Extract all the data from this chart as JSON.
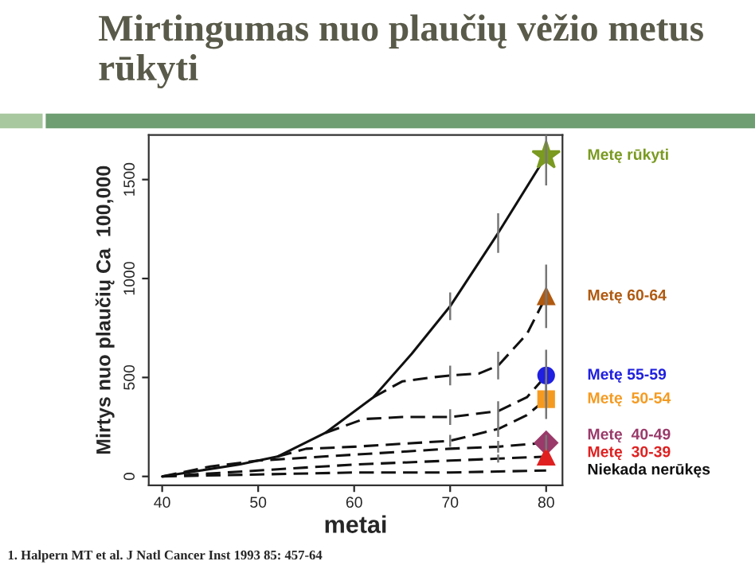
{
  "chart_data": {
    "type": "line",
    "title": "Mirtingumas nuo plaučių vėžio metus rūkyti",
    "xlabel": "metai",
    "ylabel": "Mirtys nuo plaučių Ca  100,000",
    "xlim": [
      38.6,
      81.7
    ],
    "ylim": [
      -45,
      1725
    ],
    "xticks": [
      40,
      50,
      60,
      70,
      80
    ],
    "yticks": [
      0,
      500,
      1000,
      1500
    ],
    "grid": false,
    "legend": false,
    "annotations": [
      "1. Halpern MT et al. J Natl Cancer Inst 1993 85: 457-64"
    ],
    "series": [
      {
        "color": "#111111",
        "marker": "none",
        "line_style": "solid",
        "x": [
          40,
          44,
          48,
          52,
          57,
          62,
          66,
          70,
          75,
          80
        ],
        "values": [
          0,
          30,
          60,
          100,
          220,
          400,
          620,
          860,
          1230,
          1620
        ],
        "errors": [
          null,
          null,
          null,
          null,
          null,
          null,
          null,
          70,
          100,
          150
        ]
      },
      {
        "color": "#111111",
        "marker": "none",
        "line_style": "dashed",
        "x": [
          62,
          65,
          68,
          70,
          73,
          75,
          78,
          80
        ],
        "values": [
          400,
          480,
          500,
          510,
          520,
          560,
          720,
          910
        ],
        "errors": [
          null,
          null,
          null,
          50,
          null,
          70,
          null,
          160
        ]
      },
      {
        "color": "#111111",
        "marker": "none",
        "line_style": "dashed",
        "x": [
          57,
          61,
          65,
          70,
          75,
          78,
          80
        ],
        "values": [
          220,
          290,
          300,
          300,
          330,
          400,
          510
        ],
        "errors": [
          null,
          null,
          null,
          40,
          50,
          null,
          130
        ]
      },
      {
        "color": "#111111",
        "marker": "none",
        "line_style": "dashed",
        "x": [
          52,
          55,
          60,
          70,
          75,
          78,
          80
        ],
        "values": [
          100,
          140,
          150,
          180,
          240,
          310,
          390
        ],
        "errors": [
          null,
          null,
          null,
          30,
          40,
          null,
          100
        ]
      },
      {
        "color": "#111111",
        "marker": "none",
        "line_style": "dashed",
        "x": [
          40,
          45,
          50,
          60,
          70,
          75,
          80
        ],
        "values": [
          0,
          50,
          80,
          110,
          140,
          150,
          170
        ],
        "errors": [
          null,
          null,
          null,
          null,
          null,
          30,
          40
        ]
      },
      {
        "color": "#111111",
        "marker": "none",
        "line_style": "dashed",
        "x": [
          40,
          50,
          60,
          70,
          75,
          80
        ],
        "values": [
          0,
          30,
          60,
          80,
          90,
          100
        ],
        "errors": [
          null,
          null,
          null,
          null,
          20,
          null
        ]
      },
      {
        "name": "Niekada nerūkęs",
        "color": "#111111",
        "marker": "none",
        "line_style": "dashed",
        "x": [
          40,
          50,
          60,
          70,
          80
        ],
        "values": [
          0,
          10,
          20,
          20,
          30
        ]
      },
      {
        "type": "scatter",
        "name": "Metę rūkyti",
        "color": "#7a9a20",
        "marker": "star",
        "x": [
          80
        ],
        "values": [
          1620
        ]
      },
      {
        "type": "scatter",
        "name": "Metę 60-64",
        "color": "#b05a10",
        "marker": "triangle",
        "x": [
          80
        ],
        "values": [
          910
        ]
      },
      {
        "type": "scatter",
        "name": "Metę 55-59",
        "color": "#2020e0",
        "marker": "circle",
        "x": [
          80
        ],
        "values": [
          510
        ]
      },
      {
        "type": "scatter",
        "name": "Metę  50-54",
        "color": "#f59a20",
        "marker": "square",
        "x": [
          80
        ],
        "values": [
          390
        ]
      },
      {
        "type": "scatter",
        "name": "Metę  40-49",
        "color": "#9a3a6a",
        "marker": "diamond",
        "x": [
          80
        ],
        "values": [
          170
        ]
      },
      {
        "type": "scatter",
        "name": "Metę  30-39",
        "color": "#e02020",
        "marker": "triangle",
        "x": [
          80
        ],
        "values": [
          100
        ]
      }
    ]
  }
}
